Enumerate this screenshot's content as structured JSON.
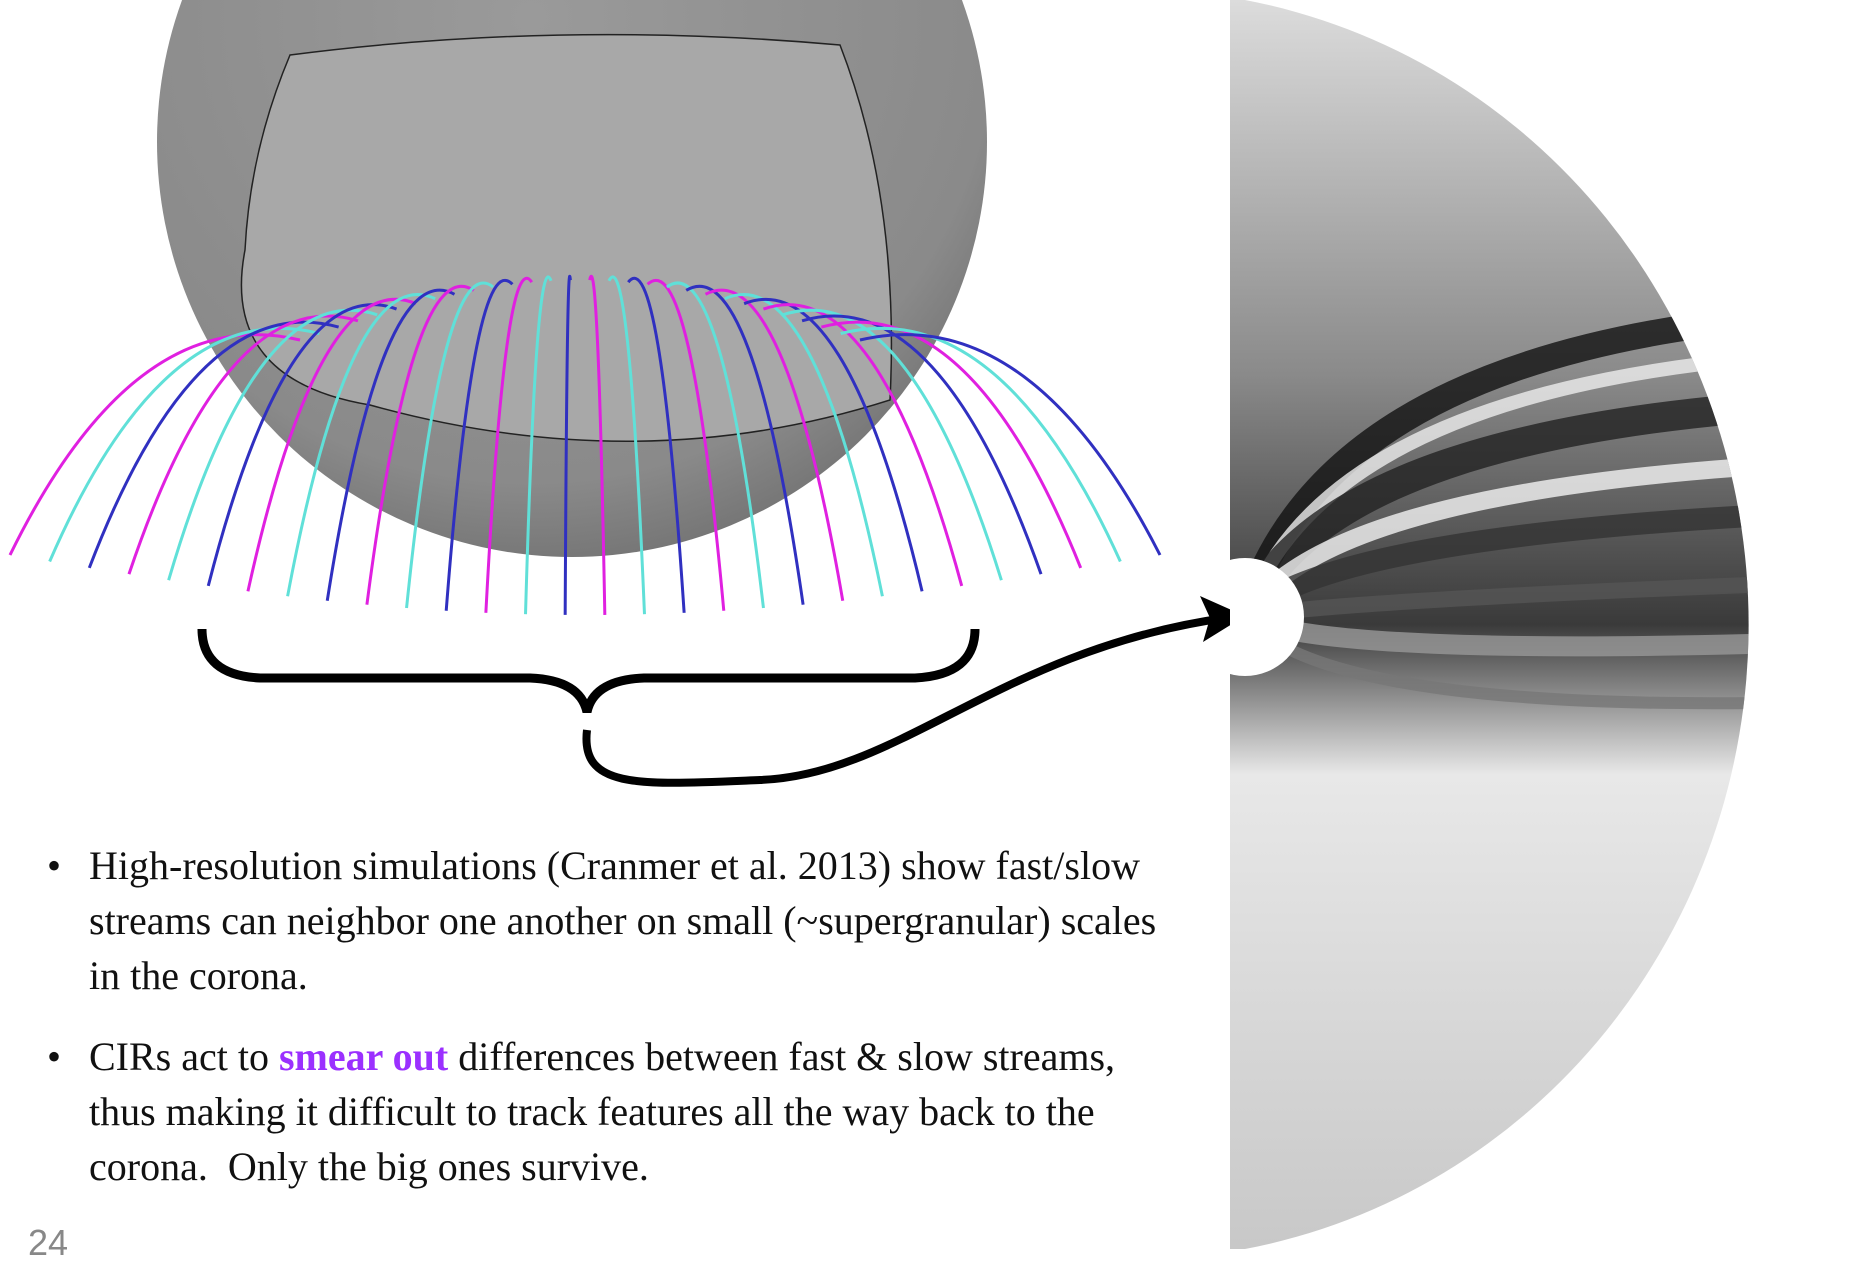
{
  "bullets": [
    {
      "segments": [
        "High-resolution simulations (Cranmer et al. 2013) show fast/slow streams can neighbor one another on small (~supergranular) scales in the corona."
      ]
    },
    {
      "segments": [
        "CIRs act to ",
        "smear out",
        " differences between fast & slow streams, thus making it difficult to track features all the way back to the corona.  Only the big ones survive."
      ]
    }
  ],
  "page_number": "24"
}
